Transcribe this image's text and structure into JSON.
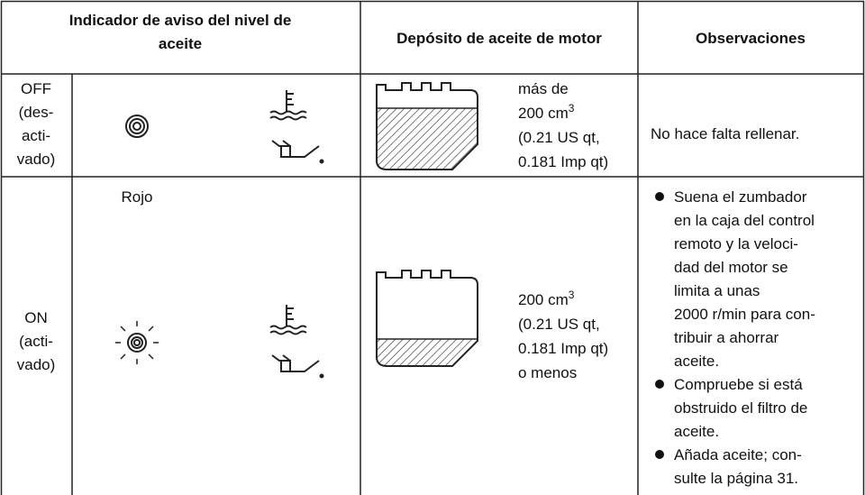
{
  "header": {
    "indicator_lines": [
      "Indicador de aviso del nivel de",
      "aceite"
    ],
    "tank": "Depósito de aceite de motor",
    "notes": "Observaciones"
  },
  "rows": [
    {
      "state_lines": [
        "OFF",
        "(des-",
        "acti-",
        "vado)"
      ],
      "tank_lines": [
        {
          "text": "más de"
        },
        {
          "text": "200 cm",
          "sup": "3"
        },
        {
          "text": "(0.21 US qt,"
        },
        {
          "text": "0.181 Imp qt)"
        }
      ],
      "notes": "No hace falta rellenar."
    },
    {
      "state_lines": [
        "ON",
        "(acti-",
        "vado)"
      ],
      "color_label": "Rojo",
      "tank_lines": [
        {
          "text": "200 cm",
          "sup": "3"
        },
        {
          "text": "(0.21 US qt,"
        },
        {
          "text": "0.181 Imp qt)"
        },
        {
          "text": "o menos"
        }
      ],
      "notes_bullets": [
        [
          "Suena el zumbador",
          "en la caja del control",
          "remoto y la veloci-",
          "dad del motor se",
          "limita a unas",
          "2000 r/min para con-",
          "tribuir a ahorrar",
          "aceite."
        ],
        [
          "Compruebe si está",
          "obstruido el filtro de",
          "aceite."
        ],
        [
          "Añada aceite; con-",
          "sulte la página 31."
        ]
      ]
    }
  ]
}
